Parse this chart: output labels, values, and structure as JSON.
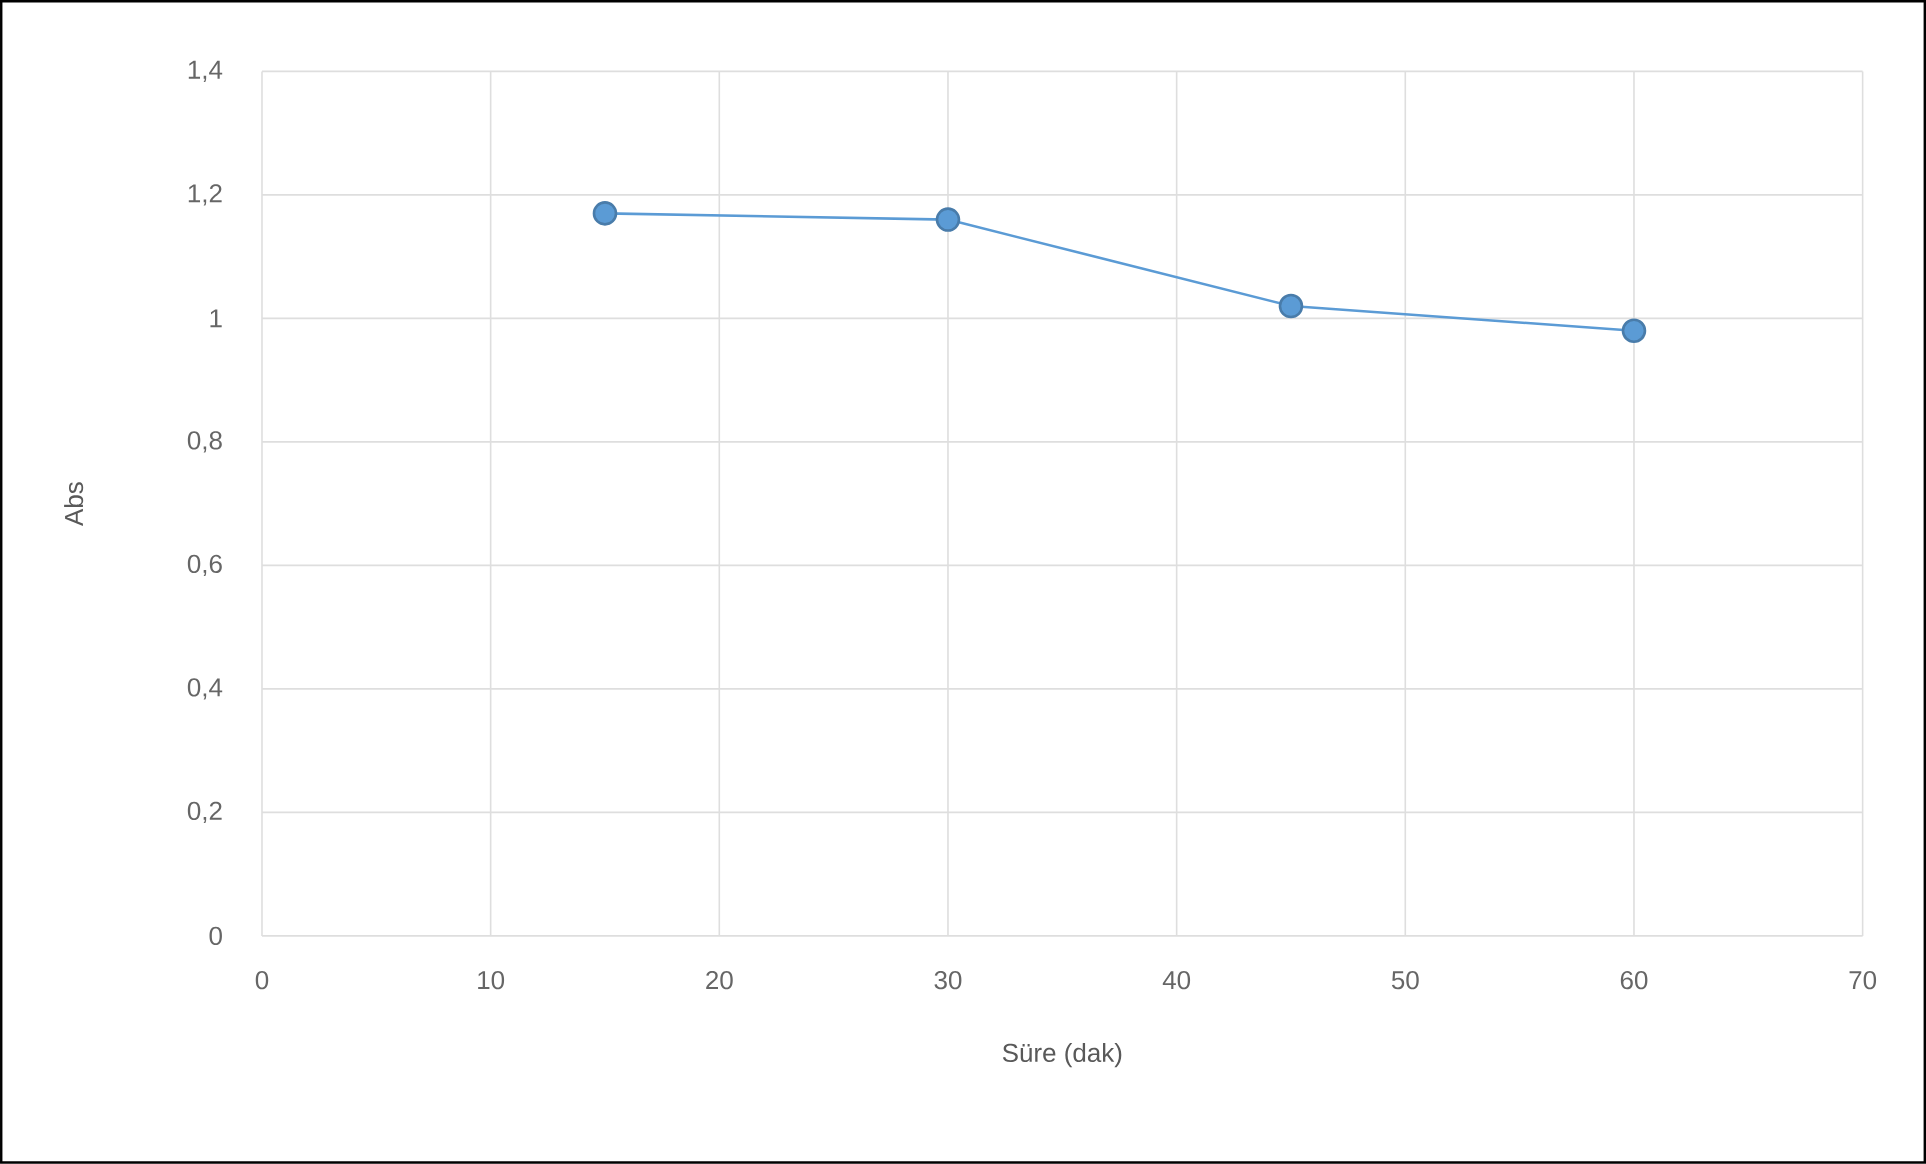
{
  "chart_data": {
    "type": "line",
    "xlabel": "Süre (dak)",
    "ylabel": "Abs",
    "x": [
      15,
      30,
      45,
      60
    ],
    "series": [
      {
        "color": "#5b9bd5",
        "values": [
          1.17,
          1.16,
          1.02,
          0.98
        ]
      }
    ],
    "xlim": [
      0,
      70
    ],
    "xticks": [
      0,
      10,
      20,
      30,
      40,
      50,
      60,
      70
    ],
    "ylim": [
      0,
      1.4
    ],
    "yticks": [
      0,
      {
        "value": 0.2,
        "label": "0,2"
      },
      {
        "value": 0.4,
        "label": "0,4"
      },
      {
        "value": 0.6,
        "label": "0,6"
      },
      {
        "value": 0.8,
        "label": "0,8"
      },
      1,
      {
        "value": 1.2,
        "label": "1,2"
      },
      {
        "value": 1.4,
        "label": "1,4"
      }
    ],
    "grid": true,
    "marker": "circle",
    "line_style": "solid"
  }
}
